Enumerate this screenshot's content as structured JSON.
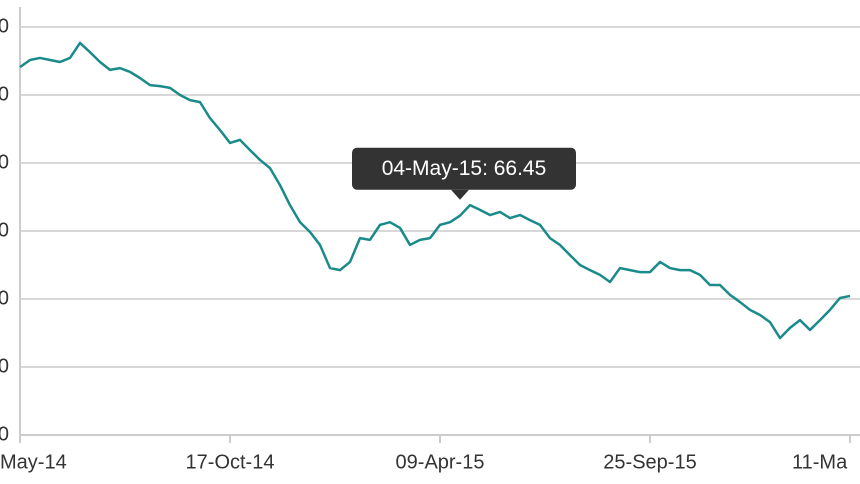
{
  "chart_data": {
    "type": "line",
    "values": [
      70.82,
      71.03,
      71.09,
      71.03,
      70.97,
      71.09,
      71.53,
      71.26,
      70.97,
      70.74,
      70.79,
      70.68,
      70.5,
      70.29,
      70.26,
      70.21,
      70.0,
      69.85,
      69.79,
      69.32,
      68.97,
      68.59,
      68.68,
      68.38,
      68.09,
      67.85,
      67.35,
      66.76,
      66.26,
      65.97,
      65.59,
      64.91,
      64.85,
      65.09,
      65.79,
      65.74,
      66.18,
      66.26,
      66.09,
      65.59,
      65.74,
      65.79,
      66.18,
      66.26,
      66.45,
      66.76,
      66.62,
      66.47,
      66.56,
      66.38,
      66.47,
      66.32,
      66.18,
      65.79,
      65.59,
      65.29,
      65.0,
      64.85,
      64.71,
      64.5,
      64.91,
      64.85,
      64.79,
      64.79,
      65.09,
      64.91,
      64.85,
      64.85,
      64.71,
      64.41,
      64.41,
      64.12,
      63.91,
      63.68,
      63.53,
      63.32,
      62.85,
      63.15,
      63.38,
      63.09,
      63.38,
      63.68,
      64.03,
      64.09
    ],
    "color": "#1a8a8a",
    "xlim": [
      0,
      83
    ],
    "xticks": [
      {
        "value": 0,
        "label": "May-14"
      },
      {
        "value": 21,
        "label": "17-Oct-14"
      },
      {
        "value": 42,
        "label": "09-Apr-15"
      },
      {
        "value": 63,
        "label": "25-Sep-15"
      },
      {
        "value": 83,
        "label": "11-Ma"
      }
    ],
    "ylim": [
      60,
      72
    ],
    "yticks": [
      {
        "value": 60,
        "label": "0"
      },
      {
        "value": 62,
        "label": "0"
      },
      {
        "value": 64,
        "label": "0"
      },
      {
        "value": 66,
        "label": "0"
      },
      {
        "value": 68,
        "label": "0"
      },
      {
        "value": 70,
        "label": "0"
      },
      {
        "value": 72,
        "label": "0"
      }
    ],
    "grid": true,
    "tooltip": {
      "index": 44,
      "text": "04-May-15: 66.45"
    }
  }
}
